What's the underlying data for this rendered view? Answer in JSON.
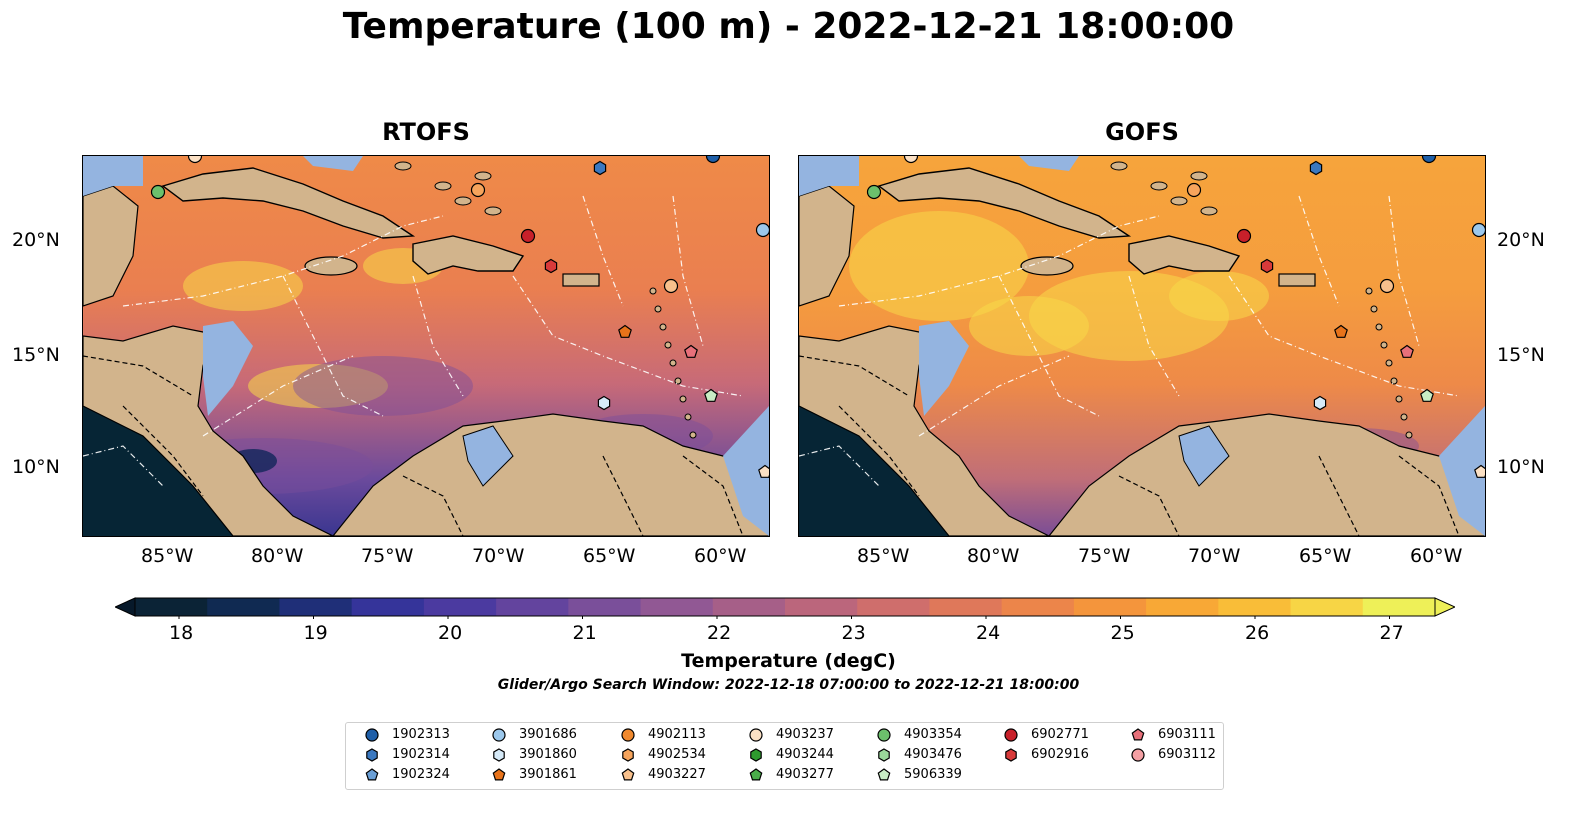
{
  "title": "Temperature (100 m) - 2022-12-21 18:00:00",
  "panels": [
    {
      "title": "RTOFS"
    },
    {
      "title": "GOFS"
    }
  ],
  "axes": {
    "x_ticks": [
      "85°W",
      "80°W",
      "75°W",
      "70°W",
      "65°W",
      "60°W"
    ],
    "y_ticks": [
      "20°N",
      "15°N",
      "10°N"
    ]
  },
  "colorbar": {
    "label": "Temperature (degC)",
    "ticks": [
      "18",
      "19",
      "20",
      "21",
      "22",
      "23",
      "24",
      "25",
      "26",
      "27"
    ],
    "min": 18,
    "max": 27,
    "extend": "both"
  },
  "subtitle": "Glider/Argo Search Window: 2022-12-18 07:00:00 to 2022-12-21 18:00:00",
  "legend": [
    {
      "id": "1902313",
      "color": "#1f5fa8",
      "marker": "circle"
    },
    {
      "id": "1902314",
      "color": "#3a78c0",
      "marker": "hexagon"
    },
    {
      "id": "1902324",
      "color": "#6a9fd6",
      "marker": "pentagon"
    },
    {
      "id": "3901686",
      "color": "#9cc8ec",
      "marker": "circle"
    },
    {
      "id": "3901860",
      "color": "#d6eaf8",
      "marker": "hexagon"
    },
    {
      "id": "3901861",
      "color": "#e8731a",
      "marker": "pentagon"
    },
    {
      "id": "4902113",
      "color": "#f0892e",
      "marker": "circle"
    },
    {
      "id": "4902534",
      "color": "#f6a45c",
      "marker": "hexagon"
    },
    {
      "id": "4903227",
      "color": "#f8c08c",
      "marker": "pentagon"
    },
    {
      "id": "4903237",
      "color": "#fbe0c4",
      "marker": "circle"
    },
    {
      "id": "4903244",
      "color": "#2e9a2e",
      "marker": "hexagon"
    },
    {
      "id": "4903277",
      "color": "#4aae4a",
      "marker": "pentagon"
    },
    {
      "id": "4903354",
      "color": "#6cc06c",
      "marker": "circle"
    },
    {
      "id": "4903476",
      "color": "#9ad89a",
      "marker": "hexagon"
    },
    {
      "id": "5906339",
      "color": "#c8ecc4",
      "marker": "pentagon"
    },
    {
      "id": "6902771",
      "color": "#c8202a",
      "marker": "circle"
    },
    {
      "id": "6902916",
      "color": "#d83a3a",
      "marker": "hexagon"
    },
    {
      "id": "6903111",
      "color": "#e8707a",
      "marker": "pentagon"
    },
    {
      "id": "6903112",
      "color": "#f4a0a4",
      "marker": "circle"
    }
  ],
  "colors": {
    "land": "#d2b48c",
    "shelf": "#94b4e0",
    "pacific_deep": "#062535",
    "warm": "#f59a48",
    "hot": "#f6e050",
    "cool": "#5a3f9a"
  }
}
